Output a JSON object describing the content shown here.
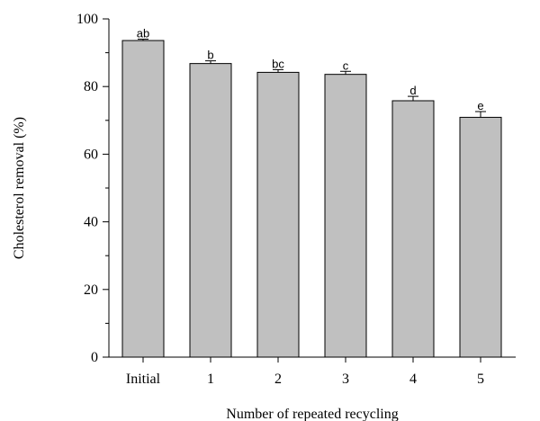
{
  "chart_data": {
    "type": "bar",
    "title": "",
    "xlabel": "Number of repeated recycling",
    "ylabel": "Cholesterol removal (%)",
    "categories": [
      "Initial",
      "1",
      "2",
      "3",
      "4",
      "5"
    ],
    "values": [
      93.6,
      86.8,
      84.2,
      83.6,
      75.8,
      70.9
    ],
    "errors": [
      0.4,
      0.8,
      0.8,
      0.9,
      1.3,
      1.7
    ],
    "significance_labels": [
      "ab",
      "b",
      "bc",
      "c",
      "d",
      "e"
    ],
    "ylim": [
      0,
      100
    ],
    "yticks": [
      0,
      20,
      40,
      60,
      80,
      100
    ],
    "grid": false,
    "bar_color": "#c0c0c0",
    "edge_color": "#000000"
  }
}
